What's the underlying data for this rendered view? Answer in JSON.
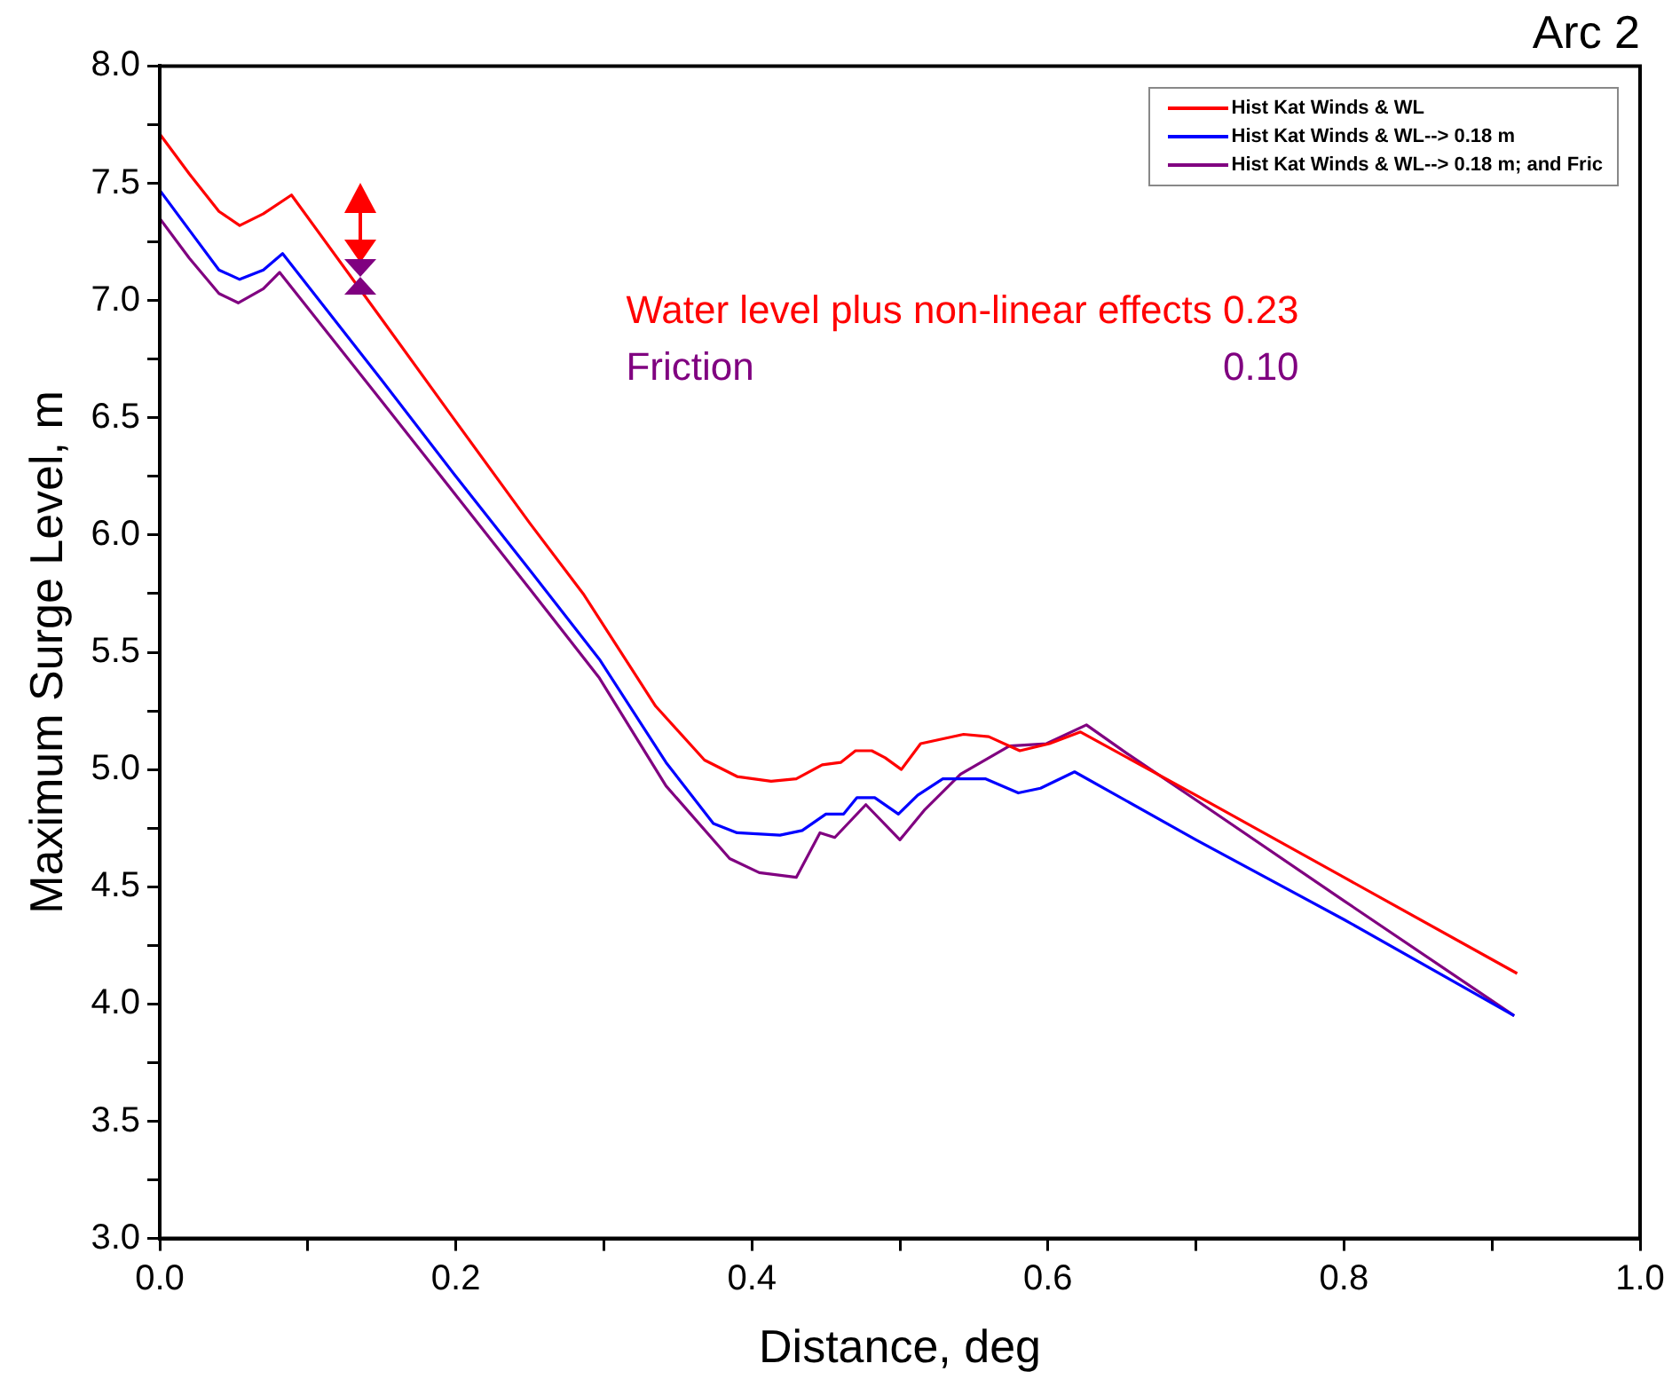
{
  "chart_data": {
    "type": "line",
    "title": "Arc 2",
    "xlabel": "Distance, deg",
    "ylabel": "Maximum Surge Level, m",
    "xlim": [
      0,
      1.0
    ],
    "ylim": [
      3.0,
      8.0
    ],
    "xticks": [
      {
        "value": 0,
        "label": "0.0"
      },
      {
        "value": 0.1,
        "label": null
      },
      {
        "value": 0.2,
        "label": "0.2"
      },
      {
        "value": 0.3,
        "label": null
      },
      {
        "value": 0.4,
        "label": "0.4"
      },
      {
        "value": 0.5,
        "label": null
      },
      {
        "value": 0.6,
        "label": "0.6"
      },
      {
        "value": 0.7,
        "label": null
      },
      {
        "value": 0.8,
        "label": "0.8"
      },
      {
        "value": 0.9,
        "label": null
      },
      {
        "value": 1.0,
        "label": "1.0"
      }
    ],
    "yticks": [
      {
        "value": 3.0,
        "label": "3.0"
      },
      {
        "value": 3.25,
        "label": null
      },
      {
        "value": 3.5,
        "label": "3.5"
      },
      {
        "value": 3.75,
        "label": null
      },
      {
        "value": 4.0,
        "label": "4.0"
      },
      {
        "value": 4.25,
        "label": null
      },
      {
        "value": 4.5,
        "label": "4.5"
      },
      {
        "value": 4.75,
        "label": null
      },
      {
        "value": 5.0,
        "label": "5.0"
      },
      {
        "value": 5.25,
        "label": null
      },
      {
        "value": 5.5,
        "label": "5.5"
      },
      {
        "value": 5.75,
        "label": null
      },
      {
        "value": 6.0,
        "label": "6.0"
      },
      {
        "value": 6.25,
        "label": null
      },
      {
        "value": 6.5,
        "label": "6.5"
      },
      {
        "value": 6.75,
        "label": null
      },
      {
        "value": 7.0,
        "label": "7.0"
      },
      {
        "value": 7.25,
        "label": null
      },
      {
        "value": 7.5,
        "label": "7.5"
      },
      {
        "value": 7.75,
        "label": null
      },
      {
        "value": 8.0,
        "label": "8.0"
      }
    ],
    "grid": false,
    "legend": "top right",
    "marker": "none",
    "line_style": "solid",
    "annotations": [
      "Water level plus non-linear effects 0.23",
      "Friction",
      "0.10"
    ],
    "series": [
      {
        "name": "Hist Kat Winds & WL",
        "color": "#ff0000",
        "x": [
          0,
          0.02,
          0.04,
          0.054,
          0.07,
          0.089,
          0.15,
          0.197,
          0.25,
          0.286,
          0.335,
          0.368,
          0.39,
          0.413,
          0.43,
          0.4475,
          0.46,
          0.47,
          0.481,
          0.49,
          0.501,
          0.514,
          0.543,
          0.56,
          0.581,
          0.601,
          0.622,
          0.7,
          0.8,
          0.917
        ],
        "values": [
          7.71,
          7.54,
          7.38,
          7.32,
          7.37,
          7.45,
          6.92,
          6.51,
          6.05,
          5.75,
          5.27,
          5.04,
          4.97,
          4.95,
          4.96,
          5.02,
          5.03,
          5.08,
          5.08,
          5.05,
          5.0,
          5.11,
          5.15,
          5.14,
          5.08,
          5.11,
          5.16,
          4.89,
          4.54,
          4.13
        ]
      },
      {
        "name": "Hist Kat Winds & WL--> 0.18 m",
        "color": "#0000ff",
        "x": [
          0,
          0.02,
          0.04,
          0.054,
          0.07,
          0.083,
          0.15,
          0.2,
          0.25,
          0.297,
          0.342,
          0.374,
          0.39,
          0.419,
          0.434,
          0.45,
          0.462,
          0.471,
          0.483,
          0.499,
          0.512,
          0.529,
          0.558,
          0.58,
          0.595,
          0.618,
          0.7,
          0.8,
          0.915
        ],
        "values": [
          7.47,
          7.3,
          7.13,
          7.09,
          7.13,
          7.2,
          6.66,
          6.25,
          5.85,
          5.47,
          5.03,
          4.77,
          4.73,
          4.72,
          4.74,
          4.81,
          4.81,
          4.88,
          4.88,
          4.81,
          4.89,
          4.96,
          4.96,
          4.9,
          4.92,
          4.99,
          4.7,
          4.36,
          3.95
        ]
      },
      {
        "name": "Hist Kat Winds & WL--> 0.18 m; and Fric",
        "color": "#800080",
        "x": [
          0,
          0.02,
          0.04,
          0.053,
          0.07,
          0.081,
          0.15,
          0.2,
          0.25,
          0.297,
          0.342,
          0.385,
          0.405,
          0.43,
          0.446,
          0.456,
          0.477,
          0.5,
          0.517,
          0.541,
          0.574,
          0.599,
          0.626,
          0.653,
          0.7,
          0.8,
          0.915
        ],
        "values": [
          7.35,
          7.18,
          7.03,
          6.99,
          7.05,
          7.12,
          6.57,
          6.17,
          5.77,
          5.39,
          4.93,
          4.62,
          4.56,
          4.54,
          4.73,
          4.71,
          4.85,
          4.7,
          4.83,
          4.98,
          5.1,
          5.11,
          5.19,
          5.07,
          4.87,
          4.44,
          3.95
        ]
      }
    ]
  }
}
